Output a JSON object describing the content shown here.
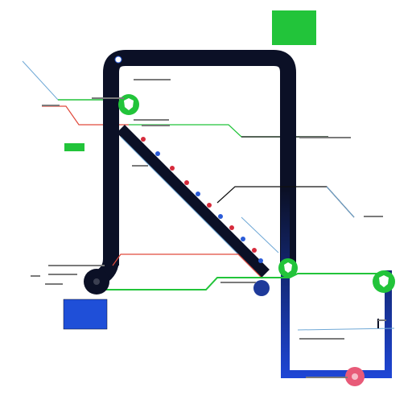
{
  "diagram": {
    "colors": {
      "background": "#ffffff",
      "main_loop": "#0b1026",
      "gradient_top": "#0b1026",
      "gradient_bottom": "#1e46d6",
      "green": "#22c43a",
      "red": "#e04a3c",
      "light_blue": "#6fa8d6",
      "blue_box": "#1f4fd8",
      "marker_red": "#d62a3b",
      "marker_pink": "#e85a78",
      "dot_blue": "#2a5bd8"
    },
    "labels": {
      "top_box": "",
      "title": "",
      "sub": "",
      "right_1": "",
      "right_2": "",
      "left_mid": "",
      "blue_box": "",
      "station_mid": "",
      "bottom": "",
      "bottom_right": ""
    },
    "icons": {
      "station_top": "shield-icon",
      "station_mid": "shield-icon",
      "station_right": "shield-icon",
      "station_bottom": "pin-icon"
    }
  }
}
